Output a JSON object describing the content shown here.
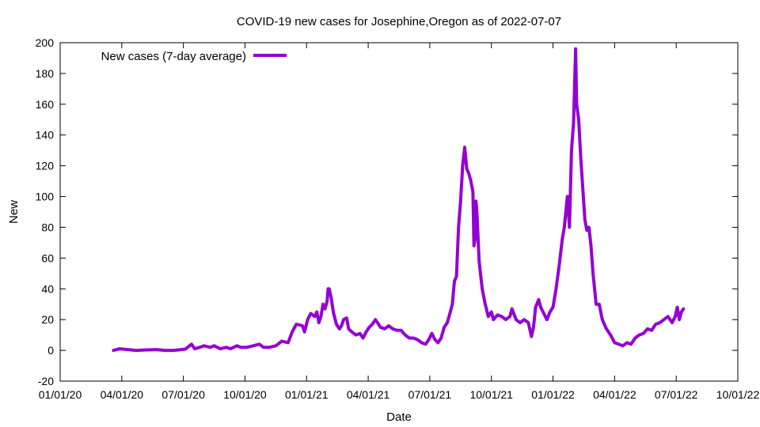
{
  "chart_data": {
    "type": "line",
    "title": "COVID-19 new cases for Josephine,Oregon as of 2022-07-07",
    "xlabel": "Date",
    "ylabel": "New",
    "ylim": [
      -20,
      200
    ],
    "yticks": [
      -20,
      0,
      20,
      40,
      60,
      80,
      100,
      120,
      140,
      160,
      180,
      200
    ],
    "xlim_month_index": [
      0,
      33
    ],
    "xticks": [
      {
        "m": 0,
        "label": "01/01/20"
      },
      {
        "m": 3,
        "label": "04/01/20"
      },
      {
        "m": 6,
        "label": "07/01/20"
      },
      {
        "m": 9,
        "label": "10/01/20"
      },
      {
        "m": 12,
        "label": "01/01/21"
      },
      {
        "m": 15,
        "label": "04/01/21"
      },
      {
        "m": 18,
        "label": "07/01/21"
      },
      {
        "m": 21,
        "label": "10/01/21"
      },
      {
        "m": 24,
        "label": "01/01/22"
      },
      {
        "m": 27,
        "label": "04/01/22"
      },
      {
        "m": 30,
        "label": "07/01/22"
      },
      {
        "m": 33,
        "label": "10/01/22"
      }
    ],
    "grid": false,
    "legend": {
      "position": "top-left"
    },
    "series": [
      {
        "name": "New cases (7-day average)",
        "color": "#9400d3",
        "points": [
          [
            2.6,
            0
          ],
          [
            2.9,
            1
          ],
          [
            3.3,
            0.5
          ],
          [
            3.7,
            0
          ],
          [
            4.2,
            0.3
          ],
          [
            4.7,
            0.5
          ],
          [
            5.1,
            0
          ],
          [
            5.5,
            0
          ],
          [
            5.9,
            0.5
          ],
          [
            6.1,
            0.8
          ],
          [
            6.3,
            3
          ],
          [
            6.4,
            4
          ],
          [
            6.55,
            1
          ],
          [
            6.8,
            2
          ],
          [
            7.0,
            3
          ],
          [
            7.3,
            2
          ],
          [
            7.5,
            3
          ],
          [
            7.8,
            1
          ],
          [
            8.1,
            2
          ],
          [
            8.3,
            1
          ],
          [
            8.6,
            3
          ],
          [
            8.8,
            2
          ],
          [
            9.1,
            2
          ],
          [
            9.4,
            3
          ],
          [
            9.7,
            4
          ],
          [
            9.9,
            2
          ],
          [
            10.2,
            2
          ],
          [
            10.5,
            3
          ],
          [
            10.8,
            6
          ],
          [
            11.1,
            5
          ],
          [
            11.3,
            12
          ],
          [
            11.5,
            17
          ],
          [
            11.8,
            16
          ],
          [
            11.9,
            12
          ],
          [
            12.05,
            20
          ],
          [
            12.2,
            24
          ],
          [
            12.4,
            22
          ],
          [
            12.5,
            25
          ],
          [
            12.6,
            18
          ],
          [
            12.7,
            22
          ],
          [
            12.8,
            30
          ],
          [
            12.9,
            27
          ],
          [
            13.0,
            32
          ],
          [
            13.05,
            40
          ],
          [
            13.1,
            40
          ],
          [
            13.2,
            34
          ],
          [
            13.3,
            25
          ],
          [
            13.45,
            17
          ],
          [
            13.6,
            14
          ],
          [
            13.7,
            16
          ],
          [
            13.8,
            20
          ],
          [
            13.95,
            21
          ],
          [
            14.05,
            14
          ],
          [
            14.2,
            12
          ],
          [
            14.4,
            10
          ],
          [
            14.6,
            11
          ],
          [
            14.75,
            8
          ],
          [
            14.9,
            12
          ],
          [
            15.05,
            15
          ],
          [
            15.2,
            17
          ],
          [
            15.35,
            20
          ],
          [
            15.45,
            18
          ],
          [
            15.6,
            15
          ],
          [
            15.8,
            14
          ],
          [
            16.0,
            16
          ],
          [
            16.2,
            14
          ],
          [
            16.4,
            13
          ],
          [
            16.6,
            13
          ],
          [
            16.8,
            10
          ],
          [
            17.0,
            8
          ],
          [
            17.2,
            8
          ],
          [
            17.4,
            7
          ],
          [
            17.6,
            5
          ],
          [
            17.8,
            4
          ],
          [
            17.95,
            7
          ],
          [
            18.1,
            11
          ],
          [
            18.25,
            7
          ],
          [
            18.4,
            5
          ],
          [
            18.55,
            8
          ],
          [
            18.7,
            15
          ],
          [
            18.85,
            18
          ],
          [
            19.0,
            25
          ],
          [
            19.1,
            30
          ],
          [
            19.2,
            45
          ],
          [
            19.3,
            48
          ],
          [
            19.4,
            80
          ],
          [
            19.5,
            97
          ],
          [
            19.6,
            120
          ],
          [
            19.7,
            132
          ],
          [
            19.8,
            118
          ],
          [
            19.9,
            115
          ],
          [
            20.0,
            110
          ],
          [
            20.1,
            103
          ],
          [
            20.15,
            68
          ],
          [
            20.2,
            72
          ],
          [
            20.25,
            97
          ],
          [
            20.3,
            88
          ],
          [
            20.4,
            58
          ],
          [
            20.55,
            40
          ],
          [
            20.7,
            30
          ],
          [
            20.85,
            22
          ],
          [
            21.0,
            25
          ],
          [
            21.1,
            20
          ],
          [
            21.3,
            23
          ],
          [
            21.5,
            22
          ],
          [
            21.7,
            20
          ],
          [
            21.9,
            22
          ],
          [
            22.0,
            27
          ],
          [
            22.2,
            20
          ],
          [
            22.4,
            18
          ],
          [
            22.6,
            20
          ],
          [
            22.8,
            18
          ],
          [
            22.95,
            9
          ],
          [
            23.05,
            15
          ],
          [
            23.15,
            28
          ],
          [
            23.3,
            33
          ],
          [
            23.4,
            28
          ],
          [
            23.55,
            24
          ],
          [
            23.7,
            20
          ],
          [
            23.85,
            25
          ],
          [
            24.0,
            28
          ],
          [
            24.15,
            40
          ],
          [
            24.3,
            55
          ],
          [
            24.45,
            72
          ],
          [
            24.55,
            80
          ],
          [
            24.7,
            100
          ],
          [
            24.8,
            80
          ],
          [
            24.9,
            130
          ],
          [
            25.0,
            148
          ],
          [
            25.1,
            196
          ],
          [
            25.15,
            160
          ],
          [
            25.25,
            150
          ],
          [
            25.35,
            125
          ],
          [
            25.45,
            105
          ],
          [
            25.55,
            85
          ],
          [
            25.65,
            78
          ],
          [
            25.75,
            80
          ],
          [
            25.85,
            68
          ],
          [
            25.95,
            50
          ],
          [
            26.1,
            30
          ],
          [
            26.25,
            30
          ],
          [
            26.4,
            20
          ],
          [
            26.6,
            14
          ],
          [
            26.8,
            10
          ],
          [
            27.0,
            5
          ],
          [
            27.2,
            4
          ],
          [
            27.4,
            3
          ],
          [
            27.6,
            5
          ],
          [
            27.8,
            4
          ],
          [
            28.0,
            8
          ],
          [
            28.2,
            10
          ],
          [
            28.4,
            11
          ],
          [
            28.6,
            14
          ],
          [
            28.8,
            13
          ],
          [
            29.0,
            17
          ],
          [
            29.2,
            18
          ],
          [
            29.4,
            20
          ],
          [
            29.6,
            22
          ],
          [
            29.8,
            18
          ],
          [
            29.95,
            22
          ],
          [
            30.05,
            28
          ],
          [
            30.15,
            20
          ],
          [
            30.25,
            25
          ],
          [
            30.35,
            27
          ]
        ]
      }
    ]
  }
}
